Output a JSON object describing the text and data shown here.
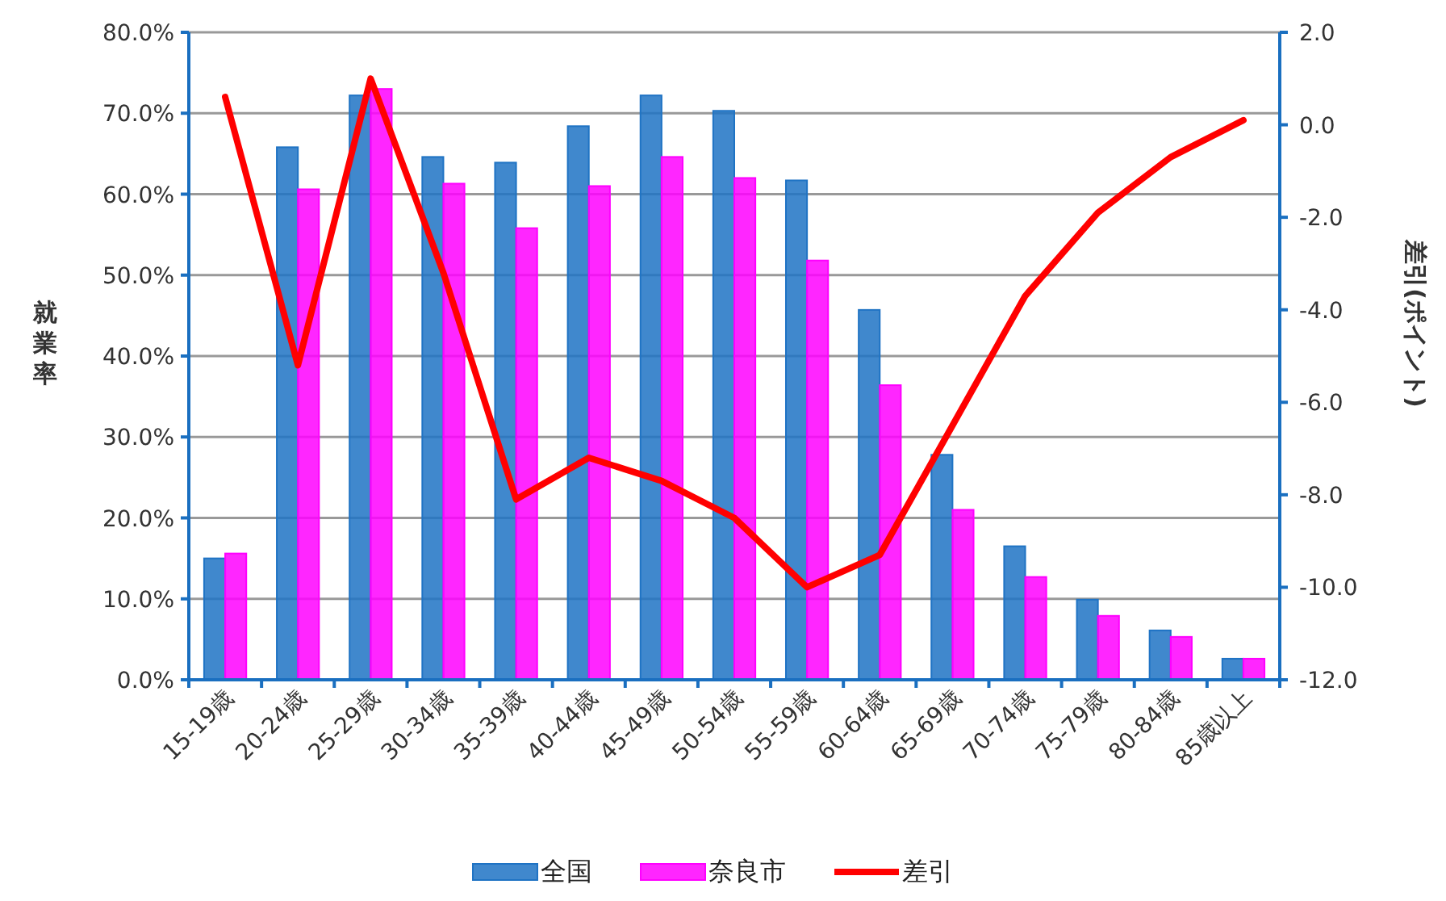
{
  "chart_data": {
    "type": "bar",
    "ylabel": "就業率",
    "y2label": "差引(ポイント)",
    "categories": [
      "15-19歳",
      "20-24歳",
      "25-29歳",
      "30-34歳",
      "35-39歳",
      "40-44歳",
      "45-49歳",
      "50-54歳",
      "55-59歳",
      "60-64歳",
      "65-69歳",
      "70-74歳",
      "75-79歳",
      "80-84歳",
      "85歳以上"
    ],
    "series": [
      {
        "name": "全国",
        "color": "#1f73c4",
        "values": [
          15.0,
          65.8,
          72.2,
          64.6,
          63.9,
          68.4,
          72.2,
          70.3,
          61.7,
          45.7,
          27.8,
          16.5,
          9.9,
          6.1,
          2.6
        ]
      },
      {
        "name": "奈良市",
        "color": "#ff00ff",
        "values": [
          15.6,
          60.6,
          73.0,
          61.3,
          55.8,
          61.0,
          64.6,
          62.0,
          51.8,
          36.4,
          21.0,
          12.7,
          7.9,
          5.3,
          2.6
        ]
      },
      {
        "name": "差引",
        "type": "line",
        "axis": "y2",
        "color": "#ff0000",
        "values": [
          0.6,
          -5.2,
          1.0,
          -3.2,
          -8.1,
          -7.2,
          -7.7,
          -8.5,
          -10.0,
          -9.3,
          -6.5,
          -3.7,
          -1.9,
          -0.7,
          0.1
        ]
      }
    ],
    "ylim": [
      0,
      80
    ],
    "yticks": [
      {
        "value": 0,
        "label": "0.0%"
      },
      {
        "value": 10,
        "label": "10.0%"
      },
      {
        "value": 20,
        "label": "20.0%"
      },
      {
        "value": 30,
        "label": "30.0%"
      },
      {
        "value": 40,
        "label": "40.0%"
      },
      {
        "value": 50,
        "label": "50.0%"
      },
      {
        "value": 60,
        "label": "60.0%"
      },
      {
        "value": 70,
        "label": "70.0%"
      },
      {
        "value": 80,
        "label": "80.0%"
      }
    ],
    "y2lim": [
      -12,
      2
    ],
    "y2ticks": [
      {
        "value": -12,
        "label": "-12.0"
      },
      {
        "value": -10,
        "label": "-10.0"
      },
      {
        "value": -8,
        "label": "-8.0"
      },
      {
        "value": -6,
        "label": "-6.0"
      },
      {
        "value": -4,
        "label": "-4.0"
      },
      {
        "value": -2,
        "label": "-2.0"
      },
      {
        "value": 0,
        "label": "0.0"
      },
      {
        "value": 2,
        "label": "2.0"
      }
    ],
    "grid": "y",
    "legend": "bottom"
  }
}
